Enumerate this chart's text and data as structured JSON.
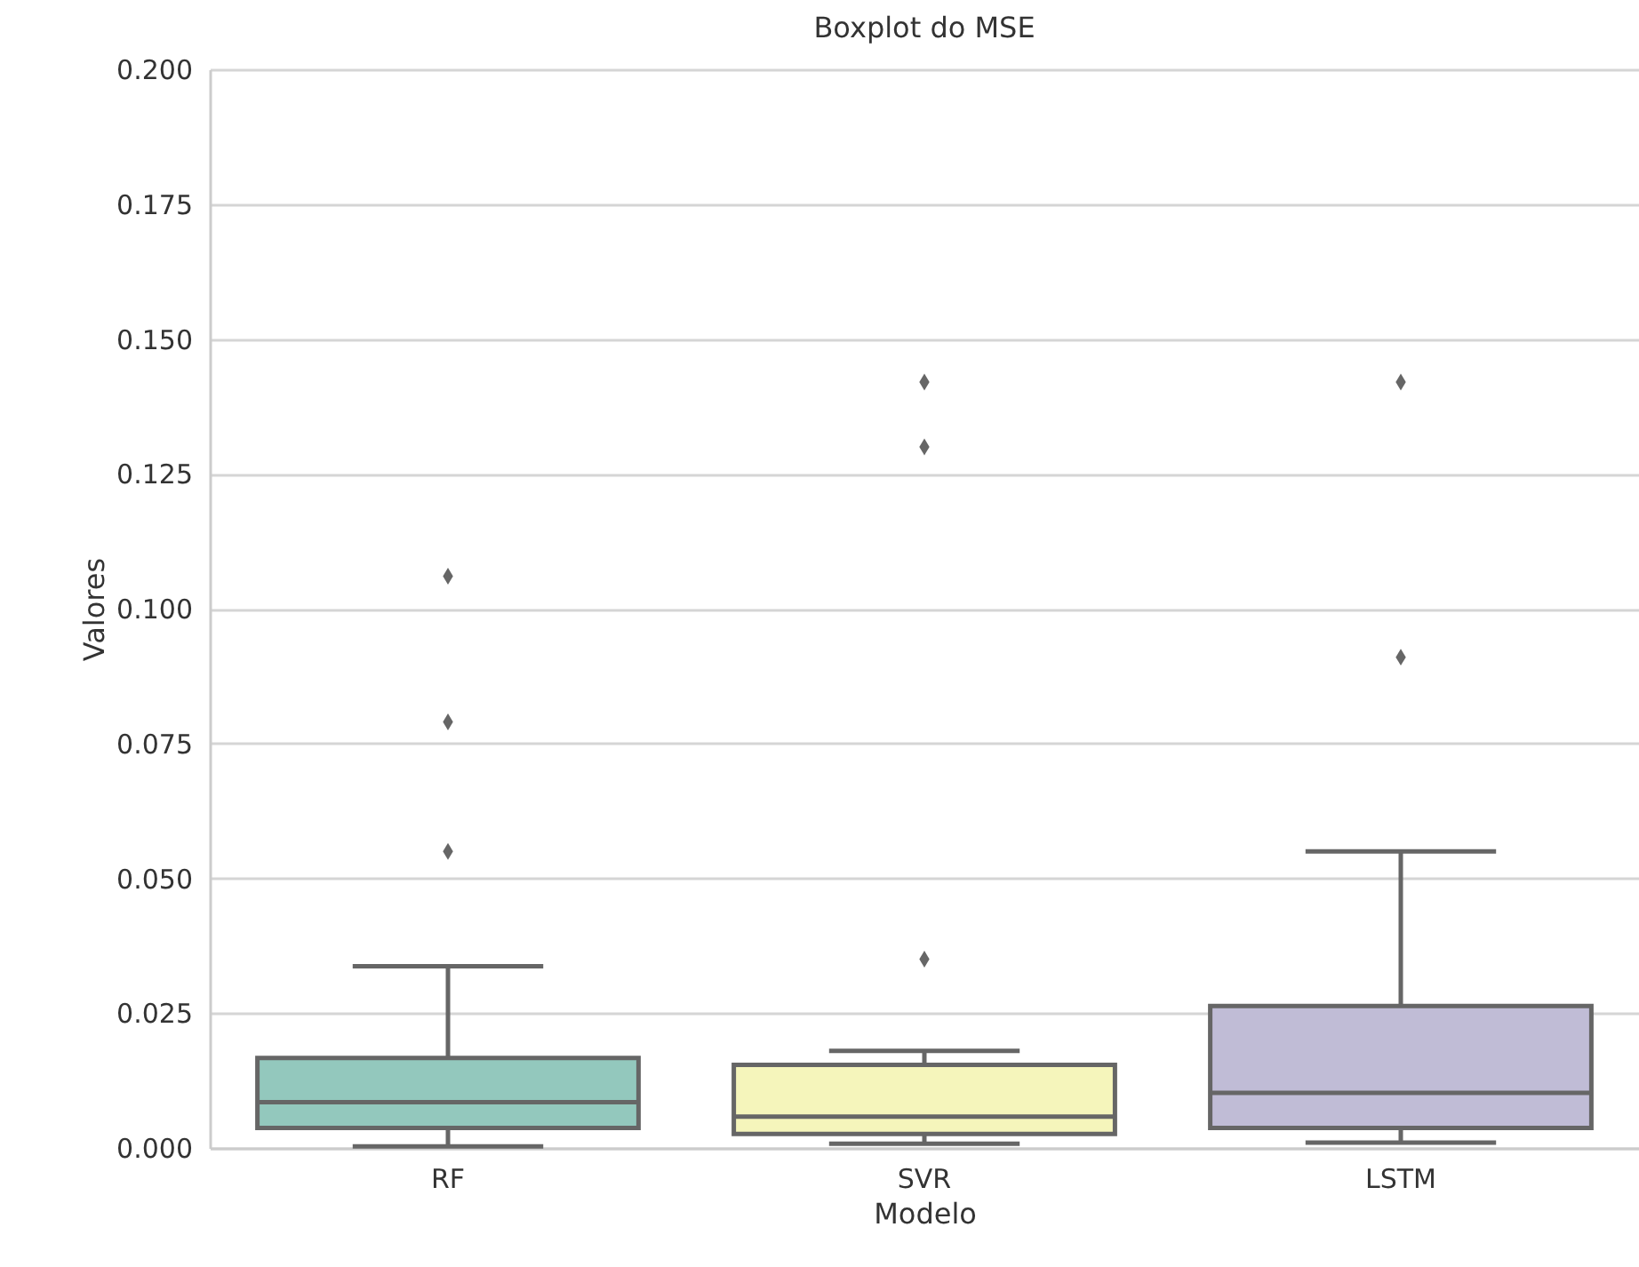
{
  "chart_data": {
    "type": "box",
    "title": "Boxplot do MSE",
    "xlabel": "Modelo",
    "ylabel": "Valores",
    "categories": [
      "RF",
      "SVR",
      "LSTM"
    ],
    "colors": [
      "#93c8bd",
      "#f5f5bb",
      "#c0bcd6"
    ],
    "boxes": [
      {
        "low": 0.0003,
        "q1": 0.0037,
        "median": 0.0085,
        "q3": 0.0167,
        "high": 0.0337,
        "outliers": [
          0.106,
          0.079,
          0.055
        ]
      },
      {
        "low": 0.0008,
        "q1": 0.0026,
        "median": 0.0058,
        "q3": 0.0154,
        "high": 0.018,
        "outliers": [
          0.142,
          0.13,
          0.035
        ]
      },
      {
        "low": 0.001,
        "q1": 0.0037,
        "median": 0.0102,
        "q3": 0.0263,
        "high": 0.055,
        "outliers": [
          0.142,
          0.091
        ]
      }
    ],
    "ylim": [
      0,
      0.2
    ],
    "yticks": [
      {
        "value": 0,
        "label": "0.000"
      },
      {
        "value": 0.025,
        "label": "0.025"
      },
      {
        "value": 0.05,
        "label": "0.050"
      },
      {
        "value": 0.075,
        "label": "0.075"
      },
      {
        "value": 0.1,
        "label": "0.100"
      },
      {
        "value": 0.125,
        "label": "0.125"
      },
      {
        "value": 0.15,
        "label": "0.150"
      },
      {
        "value": 0.175,
        "label": "0.175"
      },
      {
        "value": 0.2,
        "label": "0.200"
      }
    ],
    "grid": "y"
  }
}
